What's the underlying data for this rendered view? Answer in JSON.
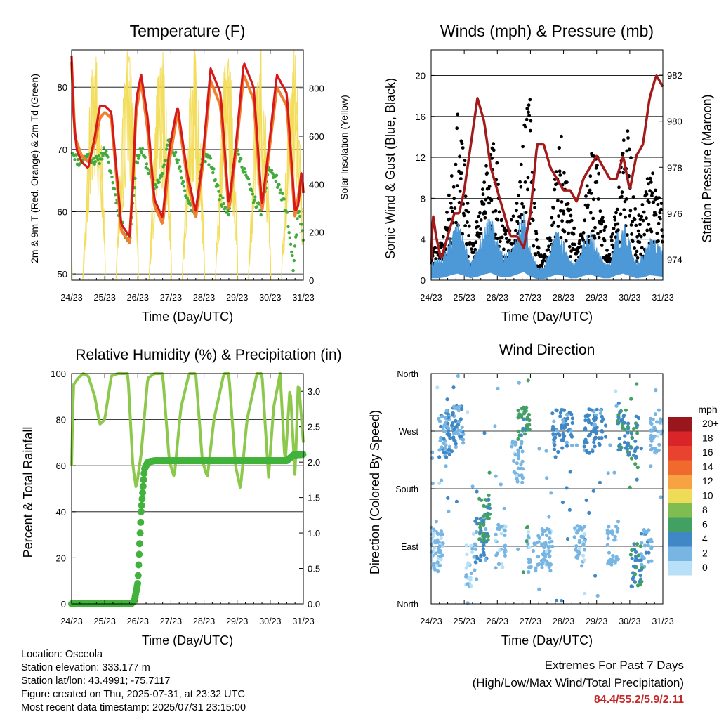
{
  "colors": {
    "temp_2m": "#d7191c",
    "temp_9m": "#f07f2e",
    "dewpoint": "#41ab3c",
    "solar": "#f3dc55",
    "wind": "#4d98d6",
    "gust": "#000000",
    "pressure": "#a31a1a",
    "humidity": "#8cc84b",
    "precip": "#41b33c",
    "extremes": "#c62828"
  },
  "x_ticks": [
    "24/23",
    "25/23",
    "26/23",
    "27/23",
    "28/23",
    "29/23",
    "30/23",
    "31/23"
  ],
  "x_axis_label": "Time (Day/UTC)",
  "info": {
    "location": "Location: Osceola",
    "elevation": "Station elevation: 333.177 m",
    "latlon": "Station lat/lon: 43.4991; -75.7117",
    "created": "Figure created on Thu, 2025-07-31, at 23:32 UTC",
    "recent": "Most recent data timestamp: 2025/07/31 23:15:00"
  },
  "extremes": {
    "line1": "Extremes For Past 7 Days",
    "line2": "(High/Low/Max Wind/Total Precipitation)",
    "value": "84.4/55.2/5.9/2.11"
  },
  "legend": {
    "title": "mph",
    "labels": [
      "20+",
      "18",
      "16",
      "14",
      "12",
      "10",
      "8",
      "6",
      "4",
      "2",
      "0"
    ],
    "colors": [
      "#99161c",
      "#d9252a",
      "#e8432f",
      "#f06a2e",
      "#f8a343",
      "#eedb58",
      "#7fbd50",
      "#43a063",
      "#3f88c5",
      "#78b5e3",
      "#b8e1f7"
    ]
  },
  "chart_data": [
    {
      "type": "line",
      "title": "Temperature (F)",
      "xlabel": "Time (Day/UTC)",
      "ylabel": "2m & 9m T (Red, Orange) & 2m Td (Green)",
      "ylabel_right": "Solar Insolation (Yellow)",
      "ylim": [
        49,
        86
      ],
      "y_ticks": [
        50,
        60,
        70,
        80
      ],
      "ylim_right": [
        0,
        960
      ],
      "y_ticks_right": [
        0,
        200,
        400,
        600,
        800
      ],
      "grid": true,
      "series": [
        {
          "axis": "left",
          "x": [
            24.0,
            24.05,
            24.15,
            24.3,
            24.5,
            24.7,
            24.85,
            25.0,
            25.2,
            25.5,
            25.75,
            25.85,
            25.95,
            26.1,
            26.3,
            26.5,
            26.75,
            26.95,
            27.2,
            27.5,
            27.75,
            27.95,
            28.2,
            28.5,
            28.75,
            28.95,
            29.2,
            29.5,
            29.75,
            29.95,
            30.2,
            30.5,
            30.75,
            30.85,
            30.95,
            31.0
          ],
          "values": [
            85,
            76,
            70,
            68,
            67,
            72,
            77,
            77,
            76,
            58,
            56,
            64,
            78,
            82,
            75,
            62,
            59,
            70,
            77,
            66,
            60,
            68,
            83,
            79,
            61,
            70,
            84,
            80,
            61,
            70,
            82,
            79,
            60,
            61,
            67,
            63
          ]
        },
        {
          "axis": "left",
          "x": [
            24.0,
            24.1,
            24.3,
            24.5,
            24.7,
            24.85,
            25.0,
            25.2,
            25.5,
            25.75,
            25.95,
            26.1,
            26.3,
            26.5,
            26.75,
            26.95,
            27.2,
            27.5,
            27.75,
            27.95,
            28.2,
            28.5,
            28.75,
            28.95,
            29.2,
            29.5,
            29.75,
            29.95,
            30.2,
            30.5,
            30.75,
            30.95,
            31.0
          ],
          "values": [
            84,
            72,
            69,
            68,
            71,
            75,
            76,
            75,
            57,
            55,
            76,
            81,
            73,
            61,
            58,
            68,
            76,
            65,
            59,
            67,
            81,
            77,
            60,
            69,
            82,
            78,
            60,
            69,
            80,
            77,
            59,
            66,
            63
          ]
        },
        {
          "axis": "left",
          "x": [
            24.0,
            24.2,
            24.5,
            24.8,
            25.0,
            25.2,
            25.5,
            25.75,
            25.95,
            26.1,
            26.3,
            26.5,
            26.75,
            26.95,
            27.2,
            27.5,
            27.75,
            27.95,
            28.2,
            28.5,
            28.75,
            28.95,
            29.2,
            29.5,
            29.75,
            29.95,
            30.2,
            30.5,
            30.7,
            30.85,
            31.0
          ],
          "values": [
            70,
            68,
            69,
            68,
            70,
            66,
            58,
            55,
            68,
            70,
            67,
            64,
            66,
            72,
            68,
            62,
            59,
            69,
            68,
            62,
            60,
            70,
            67,
            62,
            60,
            67,
            65,
            60,
            51,
            60,
            56
          ]
        },
        {
          "axis": "right",
          "x": [
            24.1,
            24.3,
            24.5,
            24.7,
            24.9,
            25.1,
            25.3,
            25.5,
            25.7,
            25.9,
            26.1,
            26.3,
            26.5,
            26.7,
            26.9,
            27.1,
            27.3,
            27.5,
            27.7,
            27.9,
            28.1,
            28.3,
            28.5,
            28.7,
            28.9,
            29.1,
            29.3,
            29.5,
            29.7,
            29.9,
            30.1,
            30.3,
            30.5,
            30.7,
            30.9
          ],
          "values": [
            0,
            0,
            500,
            900,
            400,
            0,
            550,
            800,
            0,
            300,
            850,
            600,
            0,
            500,
            800,
            0,
            650,
            900,
            0,
            700,
            900,
            0,
            600,
            950,
            0,
            600,
            850,
            0,
            700,
            600,
            0,
            500,
            350,
            0,
            0
          ]
        }
      ]
    },
    {
      "type": "scatter",
      "title": "Winds (mph) & Pressure (mb)",
      "xlabel": "Time (Day/UTC)",
      "ylabel": "Sonic Wind & Gust (Blue, Black)",
      "ylabel_right": "Station Pressure (Maroon)",
      "ylim": [
        0,
        22.5
      ],
      "y_ticks": [
        0,
        4,
        8,
        12,
        16,
        20
      ],
      "ylim_right": [
        973.1,
        983.1
      ],
      "y_ticks_right": [
        974,
        976,
        978,
        980,
        982
      ],
      "grid": true,
      "series": [
        {
          "axis": "left",
          "kind": "band",
          "x": [
            24.0,
            24.2,
            24.4,
            24.6,
            24.8,
            25.0,
            25.2,
            25.4,
            25.6,
            25.8,
            26.0,
            26.2,
            26.4,
            26.6,
            26.8,
            27.0,
            27.2,
            27.4,
            27.6,
            27.8,
            28.0,
            28.2,
            28.4,
            28.6,
            28.8,
            29.0,
            29.2,
            29.4,
            29.6,
            29.8,
            30.0,
            30.2,
            30.4,
            30.6,
            30.8,
            31.0
          ],
          "values": [
            1.5,
            1.5,
            2,
            3.5,
            4.5,
            3,
            1.5,
            2.5,
            4,
            5,
            3,
            2,
            2.5,
            4,
            5.5,
            2.5,
            1,
            1,
            2.5,
            4,
            3,
            1.5,
            1.5,
            3,
            4,
            2.5,
            1.5,
            1.5,
            3.5,
            4.5,
            3,
            1.5,
            2,
            3.5,
            3,
            2.5
          ]
        },
        {
          "axis": "left",
          "kind": "points",
          "x": [
            24.0,
            24.2,
            24.4,
            24.6,
            24.8,
            25.0,
            25.2,
            25.4,
            25.6,
            25.8,
            26.0,
            26.2,
            26.4,
            26.6,
            26.8,
            27.0,
            27.2,
            27.4,
            27.6,
            27.8,
            28.0,
            28.2,
            28.4,
            28.6,
            28.8,
            29.0,
            29.2,
            29.4,
            29.6,
            29.8,
            30.0,
            30.2,
            30.4,
            30.6,
            30.8,
            31.0
          ],
          "values": [
            3,
            2.5,
            4,
            8,
            13,
            10,
            3,
            5,
            8,
            13,
            9,
            4,
            5,
            8,
            12,
            15,
            3,
            2,
            4,
            10,
            13,
            6,
            3,
            5,
            10,
            12,
            5,
            3,
            6,
            11,
            13,
            5,
            6,
            9,
            8,
            6
          ]
        },
        {
          "axis": "right",
          "kind": "line",
          "x": [
            24.0,
            24.05,
            24.15,
            24.3,
            24.5,
            24.7,
            24.85,
            25.0,
            25.2,
            25.4,
            25.6,
            25.8,
            26.0,
            26.2,
            26.4,
            26.6,
            26.8,
            27.0,
            27.2,
            27.4,
            27.6,
            27.8,
            28.0,
            28.2,
            28.4,
            28.6,
            28.8,
            29.0,
            29.2,
            29.4,
            29.6,
            29.8,
            30.0,
            30.2,
            30.4,
            30.6,
            30.8,
            31.0
          ],
          "values": [
            974,
            976,
            975,
            974,
            975,
            976,
            976,
            977,
            979,
            981,
            980,
            978,
            977,
            976,
            975,
            975,
            974.5,
            976,
            979,
            979,
            978,
            977.5,
            977,
            977,
            976.5,
            977.5,
            978,
            978.5,
            978,
            977.5,
            977.5,
            978.5,
            977,
            978.5,
            979,
            981,
            982,
            981.5
          ]
        }
      ]
    },
    {
      "type": "line",
      "title": "Relative Humidity (%) & Precipitation (in)",
      "xlabel": "Time (Day/UTC)",
      "ylabel": "Percent & Total Rainfall",
      "ylim": [
        0,
        100
      ],
      "y_ticks": [
        0,
        20,
        40,
        60,
        80,
        100
      ],
      "ylim_right": [
        0,
        3.25
      ],
      "y_ticks_right": [
        0.0,
        0.5,
        1.0,
        1.5,
        2.0,
        2.5,
        3.0
      ],
      "grid": true,
      "series": [
        {
          "axis": "left",
          "x": [
            24.0,
            24.05,
            24.2,
            24.35,
            24.5,
            24.7,
            24.85,
            25.0,
            25.2,
            25.4,
            25.7,
            25.85,
            25.95,
            26.1,
            26.3,
            26.5,
            26.75,
            26.95,
            27.1,
            27.3,
            27.55,
            27.75,
            27.95,
            28.1,
            28.3,
            28.6,
            28.75,
            28.95,
            29.1,
            29.3,
            29.6,
            29.75,
            29.95,
            30.1,
            30.3,
            30.45,
            30.6,
            30.75,
            30.85,
            31.0
          ],
          "values": [
            60,
            95,
            98,
            100,
            99,
            90,
            78,
            80,
            99,
            100,
            100,
            60,
            50,
            65,
            98,
            100,
            100,
            62,
            55,
            85,
            100,
            100,
            62,
            55,
            80,
            100,
            100,
            60,
            50,
            80,
            100,
            100,
            55,
            85,
            100,
            60,
            95,
            55,
            98,
            70
          ]
        },
        {
          "axis": "right",
          "x": [
            24.0,
            25.0,
            25.8,
            25.9,
            26.0,
            26.1,
            26.2,
            26.3,
            26.5,
            27.0,
            28.0,
            29.0,
            30.0,
            30.5,
            30.7,
            31.0
          ],
          "values": [
            0,
            0,
            0,
            0.05,
            0.3,
            1.3,
            1.9,
            2.0,
            2.02,
            2.02,
            2.02,
            2.02,
            2.02,
            2.02,
            2.1,
            2.11
          ]
        }
      ]
    },
    {
      "type": "scatter",
      "title": "Wind Direction",
      "xlabel": "Time (Day/UTC)",
      "ylabel": "Direction (Colored By Speed)",
      "y_ticks": [
        "North",
        "East",
        "South",
        "West",
        "North"
      ],
      "ylim": [
        0,
        360
      ],
      "grid": true,
      "series": [
        {
          "x": [
            24.1,
            24.2,
            24.4,
            24.6,
            24.8,
            25.2,
            25.5,
            25.6,
            26.1,
            26.6,
            26.8,
            27.1,
            27.5,
            27.8,
            28.1,
            28.5,
            28.8,
            29.1,
            29.5,
            29.8,
            30.1,
            30.2,
            30.5,
            30.8
          ],
          "values": [
            90,
            85,
            260,
            270,
            280,
            60,
            100,
            130,
            90,
            220,
            275,
            80,
            85,
            270,
            280,
            90,
            270,
            280,
            95,
            270,
            260,
            60,
            90,
            270
          ],
          "speeds": [
            0,
            1,
            2,
            3,
            2,
            0,
            3,
            5,
            1,
            1,
            5,
            1,
            1,
            3,
            3,
            1,
            3,
            3,
            1,
            4,
            4,
            4,
            2,
            1
          ]
        }
      ]
    }
  ]
}
